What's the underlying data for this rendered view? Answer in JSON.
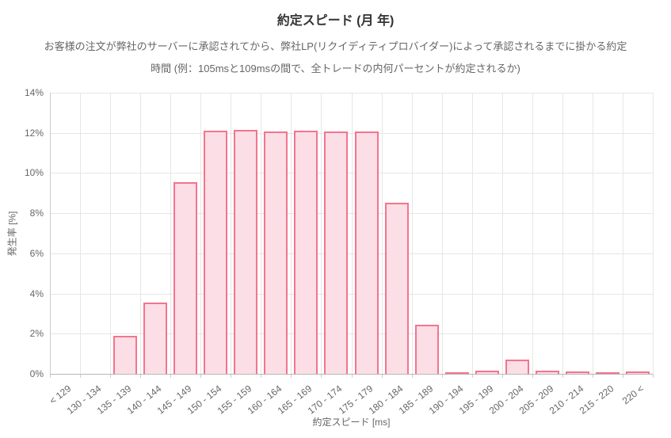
{
  "chart_data": {
    "type": "bar",
    "title": "約定スピード (月 年)",
    "subtitle_line1": "お客様の注文が弊社のサーバーに承認されてから、弊社LP(リクイディティプロバイダー)によって承認されるまでに掛かる約定",
    "subtitle_line2": "時間 (例：105msと109msの間で、全トレードの内何パーセントが約定されるか)",
    "xlabel": "約定スピード [ms]",
    "ylabel": "発生率 [%]",
    "categories": [
      "< 129",
      "130 - 134",
      "135 - 139",
      "140 - 144",
      "145 - 149",
      "150 - 154",
      "155 - 159",
      "160 - 164",
      "165 - 169",
      "170 - 174",
      "175 - 179",
      "180 - 184",
      "185 - 189",
      "190 - 194",
      "195 - 199",
      "200 - 204",
      "205 - 209",
      "210 - 214",
      "215 - 220",
      "220 <"
    ],
    "values": [
      0,
      0,
      1.9,
      3.55,
      9.55,
      12.1,
      12.13,
      12.07,
      12.1,
      12.07,
      12.05,
      8.5,
      2.45,
      0.07,
      0.15,
      0.7,
      0.16,
      0.12,
      0.04,
      0.1
    ],
    "ylim": [
      0,
      14
    ],
    "ytick_step": 2,
    "ytick_labels": [
      "0%",
      "2%",
      "4%",
      "6%",
      "8%",
      "10%",
      "12%",
      "14%"
    ],
    "grid": true,
    "legend": "none",
    "colors": {
      "bar_fill": "#fcdee6",
      "bar_border": "#f4748c",
      "gridline": "#e6e6e6",
      "axis_line": "#cccccc",
      "label_text": "#666666",
      "title_text": "#333333"
    }
  }
}
